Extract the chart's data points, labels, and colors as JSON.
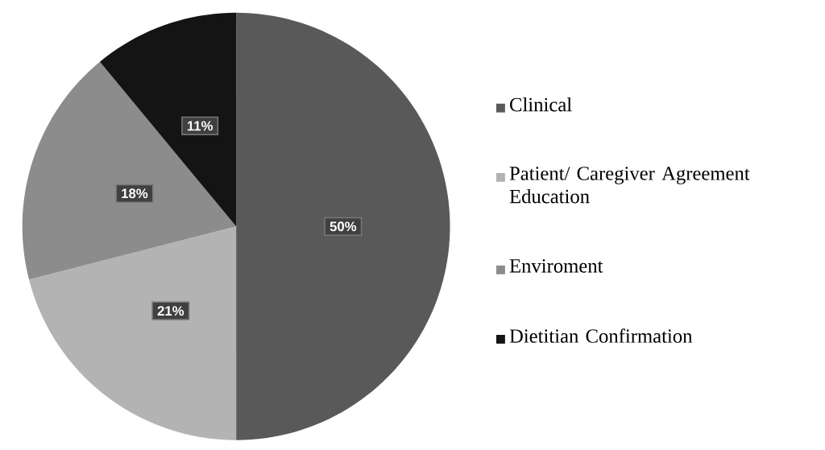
{
  "chart_data": {
    "type": "pie",
    "categories": [
      "Clinical",
      "Patient/ Caregiver Agreement Education",
      "Enviroment",
      "Dietitian Confirmation"
    ],
    "values": [
      50,
      21,
      18,
      11
    ],
    "colors": [
      "#595959",
      "#b3b3b3",
      "#8c8c8c",
      "#141414"
    ],
    "value_labels": [
      "50%",
      "21%",
      "18%",
      "11%"
    ],
    "legend": "right"
  }
}
